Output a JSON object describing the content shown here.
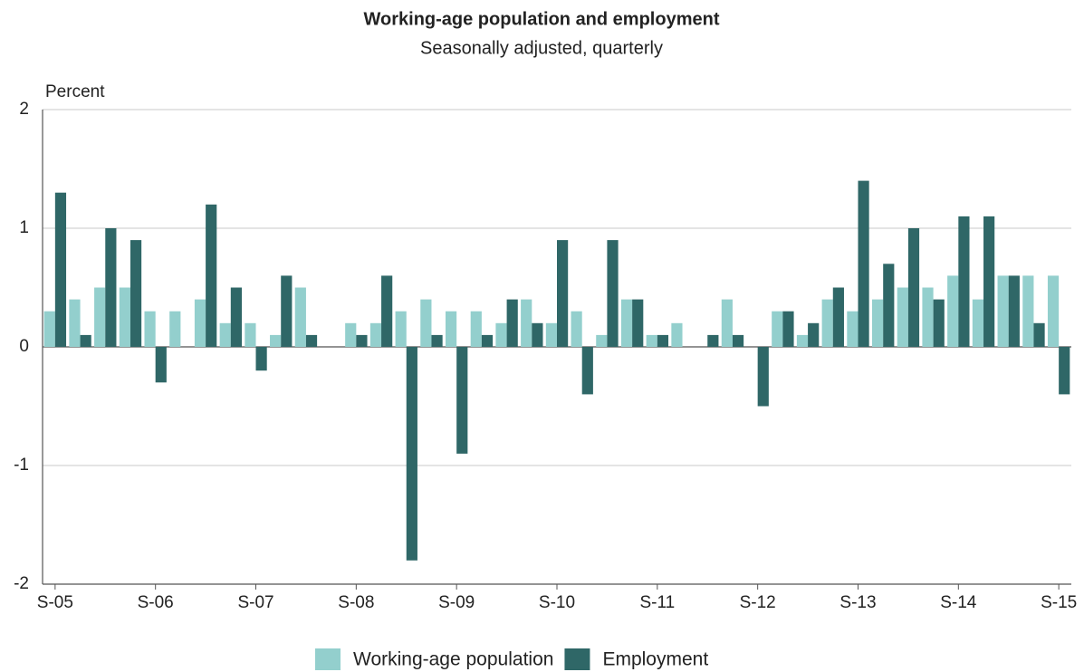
{
  "chart_data": {
    "type": "bar",
    "title": "Working-age population and employment",
    "subtitle": "Seasonally adjusted, quarterly",
    "y_label": "Percent",
    "categories": [
      "S-05",
      null,
      null,
      null,
      "S-06",
      null,
      null,
      null,
      "S-07",
      null,
      null,
      null,
      "S-08",
      null,
      null,
      null,
      "S-09",
      null,
      null,
      null,
      "S-10",
      null,
      null,
      null,
      "S-11",
      null,
      null,
      null,
      "S-12",
      null,
      null,
      null,
      "S-13",
      null,
      null,
      null,
      "S-14",
      null,
      null,
      null,
      "S-15"
    ],
    "series": [
      {
        "name": "Working-age population",
        "color": "#93cfcd",
        "values": [
          0.3,
          0.4,
          0.5,
          0.5,
          0.3,
          0.3,
          0.4,
          0.2,
          0.2,
          0.1,
          0.5,
          0,
          0.2,
          0.2,
          0.3,
          0.4,
          0.3,
          0.3,
          0.2,
          0.4,
          0.2,
          0.3,
          0.1,
          0.4,
          0.1,
          0.2,
          0,
          0.4,
          0,
          0.3,
          0.1,
          0.4,
          0.3,
          0.4,
          0.5,
          0.5,
          0.6,
          0.4,
          0.6,
          0.6,
          0.6
        ]
      },
      {
        "name": "Employment",
        "color": "#2f6767",
        "values": [
          1.3,
          0.1,
          1.0,
          0.9,
          -0.3,
          0,
          1.2,
          0.5,
          -0.2,
          0.6,
          0.1,
          0,
          0.1,
          0.6,
          -1.8,
          0.1,
          -0.9,
          0.1,
          0.4,
          0.2,
          0.9,
          -0.4,
          0.9,
          0.4,
          0.1,
          0,
          0.1,
          0.1,
          -0.5,
          0.3,
          0.2,
          0.5,
          1.4,
          0.7,
          1.0,
          0.4,
          1.1,
          1.1,
          0.6,
          0.2,
          -0.4
        ]
      }
    ],
    "ylim": [
      -2,
      2
    ],
    "yticks": [
      -2,
      -1,
      0,
      1,
      2
    ],
    "grid": true
  }
}
